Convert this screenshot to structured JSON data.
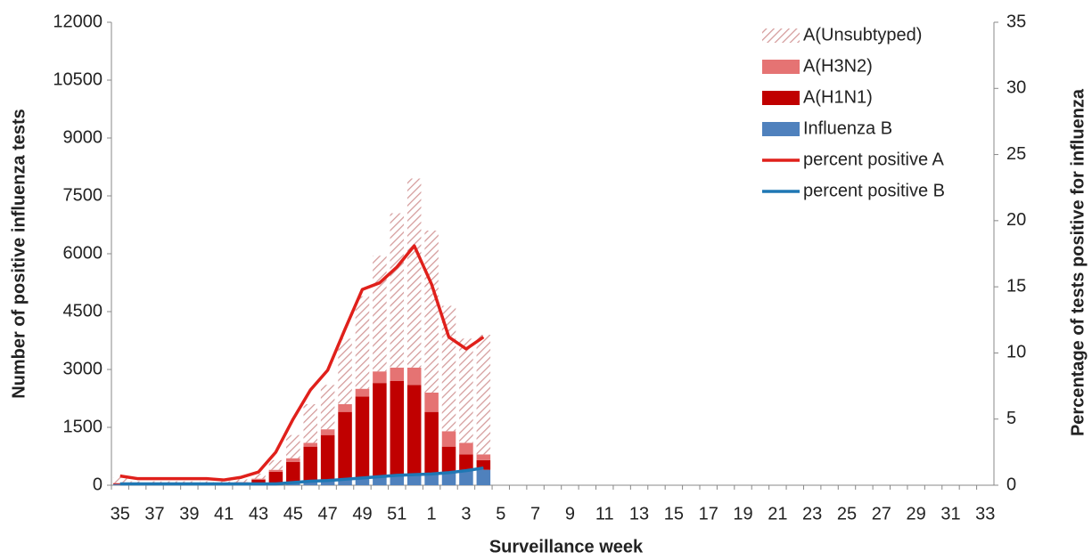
{
  "chart_data": {
    "type": "bar",
    "x_label": "Surveillance  week",
    "y_label": "Number of positive influenza tests",
    "y2_label": "Percentage of tests positive for influenza",
    "categories": [
      "35",
      null,
      "37",
      null,
      "39",
      null,
      "41",
      null,
      "43",
      null,
      "45",
      null,
      "47",
      null,
      "49",
      null,
      "51",
      null,
      "1",
      null,
      "3",
      null,
      "5",
      null,
      "7",
      null,
      "9",
      null,
      "11",
      null,
      "13",
      null,
      "15",
      null,
      "17",
      null,
      "19",
      null,
      "21",
      null,
      "23",
      null,
      "25",
      null,
      "27",
      null,
      "29",
      null,
      "31",
      null,
      "33"
    ],
    "ylim": [
      0,
      12000
    ],
    "yticks": [
      0,
      1500,
      3000,
      4500,
      6000,
      7500,
      9000,
      10500,
      12000
    ],
    "y2lim": [
      0,
      35
    ],
    "y2ticks": [
      0,
      5,
      10,
      15,
      20,
      25,
      30,
      35
    ],
    "legend": "upper right",
    "series": [
      {
        "name": "A(Unsubtyped)",
        "type": "bar",
        "hatch": true,
        "color": "#d49a9a",
        "values": [
          140,
          60,
          60,
          60,
          60,
          60,
          50,
          70,
          130,
          250,
          600,
          1000,
          1150,
          1700,
          2400,
          3000,
          4000,
          4900,
          4200,
          3250,
          2700,
          3100,
          null,
          null,
          null,
          null,
          null,
          null,
          null,
          null,
          null,
          null,
          null,
          null,
          null,
          null,
          null,
          null,
          null,
          null,
          null,
          null,
          null,
          null,
          null,
          null,
          null,
          null,
          null,
          null,
          null
        ]
      },
      {
        "name": "A(H3N2)",
        "type": "bar",
        "color": "#e57373",
        "values": [
          10,
          10,
          10,
          10,
          10,
          10,
          10,
          20,
          30,
          50,
          100,
          100,
          150,
          200,
          200,
          300,
          350,
          450,
          500,
          400,
          300,
          150,
          null,
          null,
          null,
          null,
          null,
          null,
          null,
          null,
          null,
          null,
          null,
          null,
          null,
          null,
          null,
          null,
          null,
          null,
          null,
          null,
          null,
          null,
          null,
          null,
          null,
          null,
          null,
          null,
          null
        ]
      },
      {
        "name": "A(H1N1)",
        "type": "bar",
        "color": "#c00000",
        "values": [
          20,
          10,
          10,
          10,
          10,
          10,
          20,
          30,
          100,
          300,
          540,
          920,
          1200,
          1770,
          2130,
          2450,
          2450,
          2320,
          1600,
          670,
          420,
          250,
          null,
          null,
          null,
          null,
          null,
          null,
          null,
          null,
          null,
          null,
          null,
          null,
          null,
          null,
          null,
          null,
          null,
          null,
          null,
          null,
          null,
          null,
          null,
          null,
          null,
          null,
          null,
          null,
          null
        ]
      },
      {
        "name": "Influenza B",
        "type": "bar",
        "color": "#4f81bd",
        "values": [
          30,
          20,
          20,
          20,
          20,
          20,
          20,
          30,
          40,
          50,
          60,
          80,
          100,
          130,
          170,
          200,
          250,
          280,
          300,
          330,
          380,
          400,
          null,
          null,
          null,
          null,
          null,
          null,
          null,
          null,
          null,
          null,
          null,
          null,
          null,
          null,
          null,
          null,
          null,
          null,
          null,
          null,
          null,
          null,
          null,
          null,
          null,
          null,
          null,
          null,
          null
        ]
      },
      {
        "name": "percent positive A",
        "type": "line",
        "axis": "y2",
        "color": "#e0201b",
        "values": [
          0.7,
          0.5,
          0.5,
          0.5,
          0.5,
          0.5,
          0.4,
          0.6,
          1.0,
          2.5,
          5,
          7.2,
          8.7,
          11.8,
          14.8,
          15.3,
          16.5,
          18.1,
          15.2,
          11.2,
          10.3,
          11.2,
          null,
          null,
          null,
          null,
          null,
          null,
          null,
          null,
          null,
          null,
          null,
          null,
          null,
          null,
          null,
          null,
          null,
          null,
          null,
          null,
          null,
          null,
          null,
          null,
          null,
          null,
          null,
          null,
          null
        ]
      },
      {
        "name": "percent positive B",
        "type": "line",
        "axis": "y2",
        "color": "#1f77b4",
        "values": [
          0.1,
          0.1,
          0.1,
          0.1,
          0.1,
          0.1,
          0.1,
          0.1,
          0.1,
          0.1,
          0.2,
          0.3,
          0.35,
          0.45,
          0.55,
          0.65,
          0.75,
          0.8,
          0.85,
          0.95,
          1.1,
          1.3,
          null,
          null,
          null,
          null,
          null,
          null,
          null,
          null,
          null,
          null,
          null,
          null,
          null,
          null,
          null,
          null,
          null,
          null,
          null,
          null,
          null,
          null,
          null,
          null,
          null,
          null,
          null,
          null,
          null
        ]
      }
    ]
  }
}
